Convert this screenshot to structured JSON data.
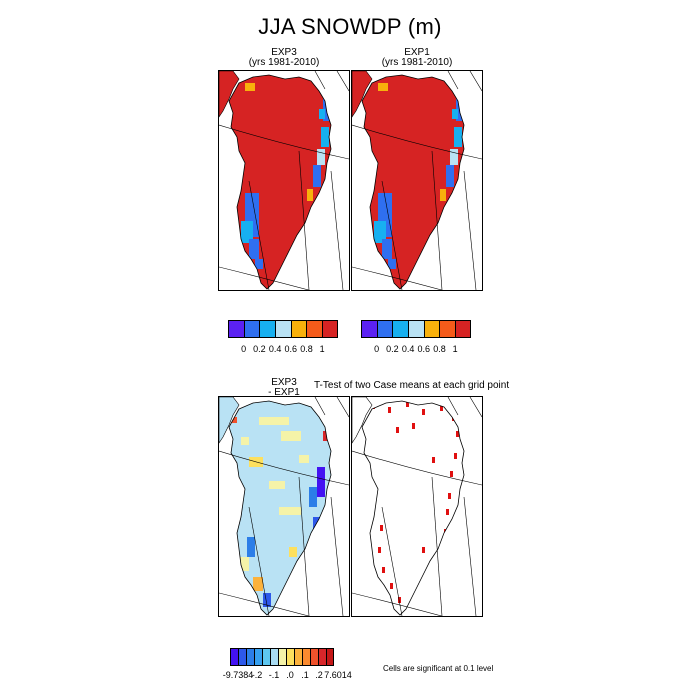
{
  "figure": {
    "title": "JJA SNOWDP (m)",
    "panels": [
      {
        "title": "EXP3",
        "subtitle": "(yrs 1981-2010)"
      },
      {
        "title": "EXP1",
        "subtitle": "(yrs 1981-2010)"
      },
      {
        "title": "EXP3",
        "subtitle": "- EXP1"
      },
      {
        "title": "T-Test of two Case means at each grid point"
      }
    ],
    "colorbar_top": {
      "colors": [
        "#5b21f2",
        "#2f6ff0",
        "#17b0f0",
        "#b9e2f4",
        "#f8b10c",
        "#f55b1a",
        "#d62323"
      ],
      "labels": [
        "0",
        "0.2",
        "0.4",
        "0.6",
        "0.8",
        "1"
      ]
    },
    "colorbar_diff": {
      "colors": [
        "#4312f2",
        "#2d58ea",
        "#2c7ee8",
        "#36a0f0",
        "#5ec7f0",
        "#a9dcf2",
        "#f5f3a8",
        "#fde05e",
        "#fcb23c",
        "#fa8a2f",
        "#f0522c",
        "#d8262a",
        "#c41717"
      ],
      "labels": [
        "-9.7384",
        "-.2",
        "-.1",
        ".0",
        ".1",
        ".2",
        "7.6014"
      ]
    },
    "significance_note": "Cells are significant at 0.1 level"
  }
}
